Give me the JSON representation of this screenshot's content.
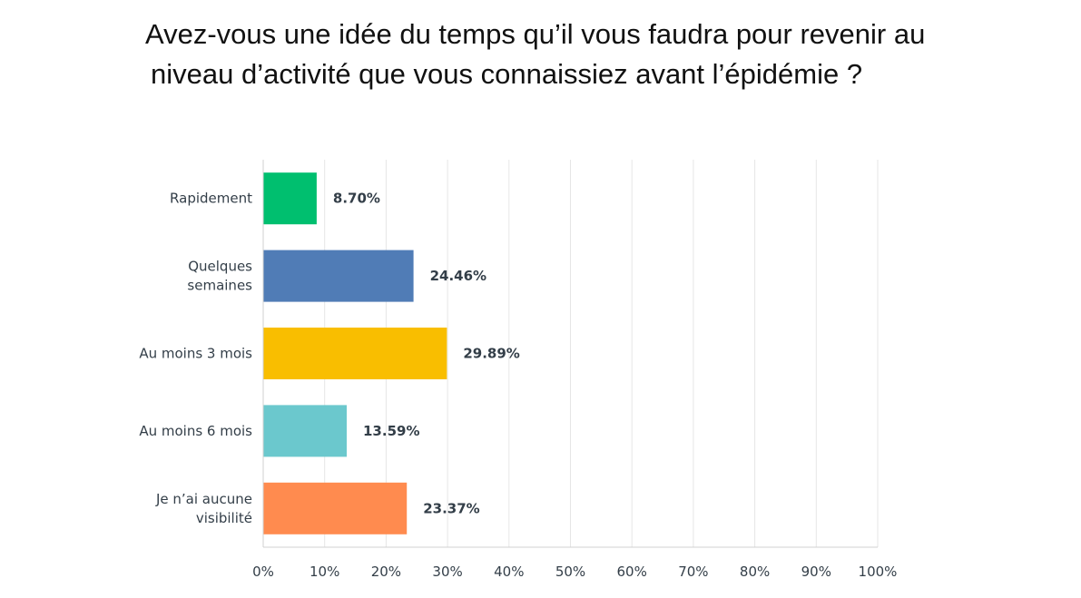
{
  "chart_data": {
    "type": "bar",
    "orientation": "horizontal",
    "title": "Avez-vous une idée du temps qu’il vous faudra pour revenir au niveau d’activité que vous connaissiez avant l’épidémie ?",
    "title_lines": [
      "Avez-vous une idée du temps qu’il vous faudra pour revenir au",
      "niveau d’activité que vous connaissiez avant l’épidémie ?"
    ],
    "categories": [
      [
        "Rapidement"
      ],
      [
        "Quelques",
        "semaines"
      ],
      [
        "Au moins 3 mois"
      ],
      [
        "Au moins 6 mois"
      ],
      [
        "Je n’ai aucune",
        "visibilité"
      ]
    ],
    "values": [
      8.7,
      24.46,
      29.89,
      13.59,
      23.37
    ],
    "value_labels": [
      "8.70%",
      "24.46%",
      "29.89%",
      "13.59%",
      "23.37%"
    ],
    "colors": [
      "#00bf6f",
      "#507cb6",
      "#f9be00",
      "#6bc8cd",
      "#ff8b4f"
    ],
    "xlim": [
      0,
      100
    ],
    "xticks": [
      0,
      10,
      20,
      30,
      40,
      50,
      60,
      70,
      80,
      90,
      100
    ],
    "xtick_labels": [
      "0%",
      "10%",
      "20%",
      "30%",
      "40%",
      "50%",
      "60%",
      "70%",
      "80%",
      "90%",
      "100%"
    ],
    "xlabel": "",
    "ylabel": "",
    "grid": true,
    "legend": "none"
  }
}
